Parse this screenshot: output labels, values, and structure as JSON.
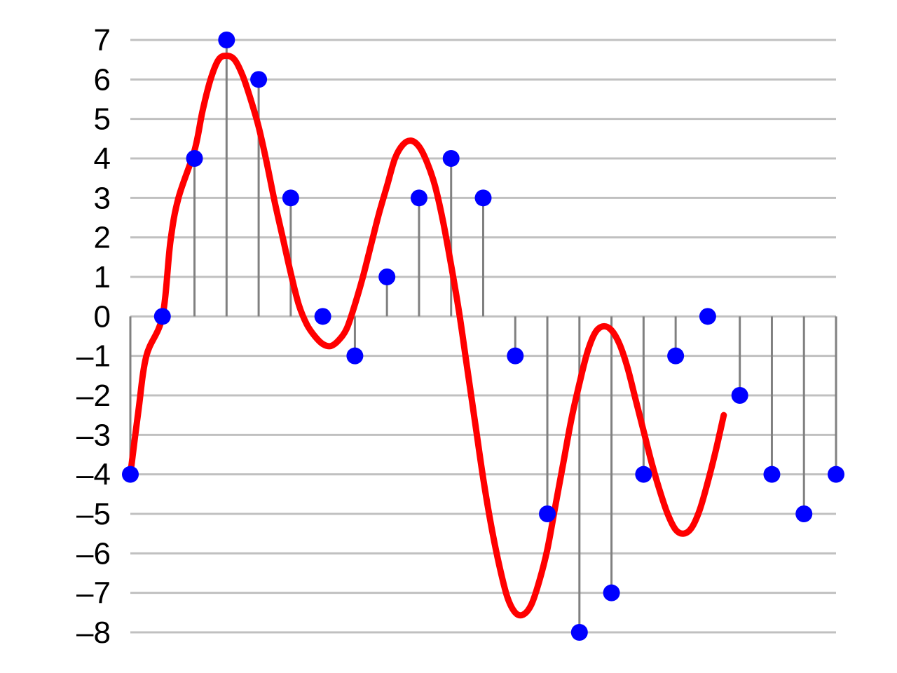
{
  "chart_data": {
    "type": "line",
    "title": "",
    "xlabel": "",
    "ylabel": "",
    "x": [
      0,
      1,
      2,
      3,
      4,
      5,
      6,
      7,
      8,
      9,
      10,
      11,
      12,
      13,
      14,
      15,
      16,
      17,
      18,
      19,
      20,
      21,
      22
    ],
    "samples": [
      -4,
      0,
      4,
      7,
      6,
      3,
      0,
      -1,
      1,
      3,
      4,
      3,
      -1,
      -5,
      -8,
      -7,
      -4,
      -1,
      0,
      -2,
      -4,
      -5,
      -4
    ],
    "yticks": [
      7,
      6,
      5,
      4,
      3,
      2,
      1,
      0,
      -1,
      -2,
      -3,
      -4,
      -5,
      -6,
      -7,
      -8
    ],
    "ytick_labels": [
      "7",
      "6",
      "5",
      "4",
      "3",
      "2",
      "1",
      "0",
      "–1",
      "–2",
      "–3",
      "–4",
      "–5",
      "–6",
      "–7",
      "–8"
    ],
    "ylim": [
      -8,
      7
    ],
    "xlim": [
      0,
      22
    ],
    "grid": true,
    "legend": "none",
    "series": [
      {
        "kind": "continuous-curve",
        "color": "#ff0000",
        "points": [
          [
            0,
            -4
          ],
          [
            0.25,
            -2.4
          ],
          [
            0.5,
            -1.0
          ],
          [
            1,
            0
          ],
          [
            1.25,
            1.9
          ],
          [
            1.5,
            3.0
          ],
          [
            2,
            4.2
          ],
          [
            2.25,
            5.2
          ],
          [
            2.5,
            6.0
          ],
          [
            2.75,
            6.5
          ],
          [
            3,
            6.6
          ],
          [
            3.25,
            6.5
          ],
          [
            3.5,
            6.1
          ],
          [
            3.75,
            5.5
          ],
          [
            4,
            4.8
          ],
          [
            4.25,
            3.9
          ],
          [
            4.5,
            2.9
          ],
          [
            4.75,
            2.0
          ],
          [
            5,
            1.1
          ],
          [
            5.25,
            0.3
          ],
          [
            5.5,
            -0.2
          ],
          [
            5.75,
            -0.5
          ],
          [
            6,
            -0.7
          ],
          [
            6.25,
            -0.75
          ],
          [
            6.5,
            -0.6
          ],
          [
            6.75,
            -0.3
          ],
          [
            7,
            0.3
          ],
          [
            7.25,
            1.0
          ],
          [
            7.5,
            1.8
          ],
          [
            7.75,
            2.6
          ],
          [
            8,
            3.3
          ],
          [
            8.25,
            4.0
          ],
          [
            8.5,
            4.35
          ],
          [
            8.75,
            4.45
          ],
          [
            9,
            4.3
          ],
          [
            9.25,
            3.9
          ],
          [
            9.5,
            3.3
          ],
          [
            9.75,
            2.4
          ],
          [
            10,
            1.3
          ],
          [
            10.25,
            0.1
          ],
          [
            10.5,
            -1.3
          ],
          [
            10.75,
            -2.7
          ],
          [
            11,
            -4.1
          ],
          [
            11.25,
            -5.3
          ],
          [
            11.5,
            -6.3
          ],
          [
            11.75,
            -7.1
          ],
          [
            12,
            -7.5
          ],
          [
            12.25,
            -7.55
          ],
          [
            12.5,
            -7.3
          ],
          [
            12.75,
            -6.7
          ],
          [
            13,
            -5.9
          ],
          [
            13.25,
            -4.8
          ],
          [
            13.5,
            -3.7
          ],
          [
            13.75,
            -2.6
          ],
          [
            14,
            -1.7
          ],
          [
            14.25,
            -0.9
          ],
          [
            14.5,
            -0.4
          ],
          [
            14.75,
            -0.25
          ],
          [
            15,
            -0.35
          ],
          [
            15.25,
            -0.7
          ],
          [
            15.5,
            -1.3
          ],
          [
            15.75,
            -2.1
          ],
          [
            16,
            -2.9
          ],
          [
            16.25,
            -3.7
          ],
          [
            16.5,
            -4.4
          ],
          [
            16.75,
            -5.0
          ],
          [
            17,
            -5.4
          ],
          [
            17.25,
            -5.5
          ],
          [
            17.5,
            -5.35
          ],
          [
            17.75,
            -4.9
          ],
          [
            18,
            -4.2
          ],
          [
            18.25,
            -3.4
          ],
          [
            18.5,
            -2.5
          ]
        ]
      }
    ],
    "stem_color": "#808080",
    "sample_marker_color": "#0000ff",
    "grid_color": "#c0c0c0"
  }
}
